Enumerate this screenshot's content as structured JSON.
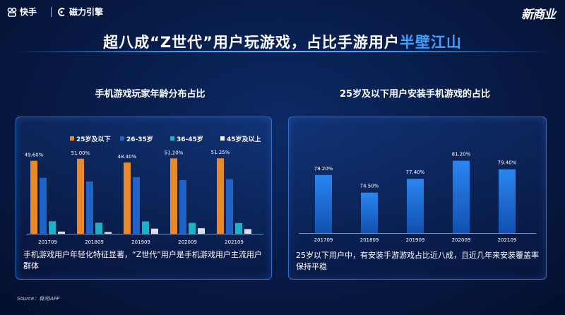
{
  "header": {
    "logo_kuaishou": "快手",
    "logo_cili": "磁力引擎",
    "logo_right": "新商业"
  },
  "title": {
    "part1": "超八成“Z世代”用户玩游戏，占比手游用户",
    "part2": "半壁江山"
  },
  "left_panel": {
    "title": "手机游戏玩家年龄分布占比",
    "description": "手机游戏用户年轻化特征显著，“Z世代”用户是手机游戏用户主流用户群体"
  },
  "right_panel": {
    "title": "25岁及以下用户安装手机游戏的占比",
    "description": "25岁以下用户中，有安装手游游戏占比近八成，且近几年来安装覆盖率保持平稳"
  },
  "source": "Source：极光iAPP",
  "chart_data": [
    {
      "type": "bar",
      "title": "手机游戏玩家年龄分布占比",
      "categories": [
        "201709",
        "201809",
        "201909",
        "202009",
        "202109"
      ],
      "series": [
        {
          "name": "25岁及以下",
          "color": "#e8892a",
          "values": [
            49.6,
            51.0,
            48.4,
            51.2,
            51.25
          ],
          "labels": [
            "49.60%",
            "51.00%",
            "48.40%",
            "51.20%",
            "51.25%"
          ]
        },
        {
          "name": "26-35岁",
          "color": "#1f63c7",
          "values": [
            38.0,
            35.5,
            38.5,
            36.5,
            37.2
          ]
        },
        {
          "name": "36-45岁",
          "color": "#19b3c9",
          "values": [
            8.5,
            7.5,
            8.4,
            7.4,
            7.3
          ]
        },
        {
          "name": "45岁及以上",
          "color": "#eef3fb",
          "values": [
            1.5,
            1.2,
            3.5,
            3.8,
            3.2
          ]
        }
      ],
      "legend": "top",
      "ylim": [
        0,
        60
      ]
    },
    {
      "type": "bar",
      "title": "25岁及以下用户安装手机游戏的占比",
      "categories": [
        "201709",
        "201809",
        "201909",
        "202009",
        "202109"
      ],
      "series": [
        {
          "color": "#1f74e0",
          "values": [
            78.2,
            74.5,
            77.4,
            81.2,
            79.4
          ],
          "labels": [
            "78.20%",
            "74.50%",
            "77.40%",
            "81.20%",
            "79.40%"
          ]
        }
      ],
      "ylim": [
        66,
        85
      ]
    }
  ]
}
